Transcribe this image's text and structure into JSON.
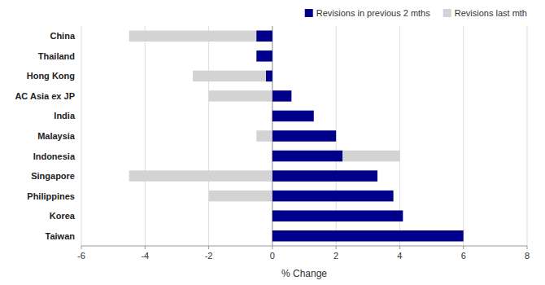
{
  "chart_data": {
    "type": "bar",
    "orientation": "horizontal",
    "categories": [
      "China",
      "Thailand",
      "Hong Kong",
      "AC Asia ex JP",
      "India",
      "Malaysia",
      "Indonesia",
      "Singapore",
      "Philippines",
      "Korea",
      "Taiwan"
    ],
    "series": [
      {
        "name": "Revisions in previous 2 mths",
        "color": "#00008B",
        "values": [
          -0.5,
          -0.5,
          -0.2,
          0.6,
          1.3,
          2.0,
          2.2,
          3.3,
          3.8,
          4.1,
          6.0
        ]
      },
      {
        "name": "Revisions last mth",
        "color": "#D3D3D3",
        "values": [
          -4.5,
          0.0,
          -2.5,
          -2.0,
          0.0,
          -0.5,
          4.0,
          -4.5,
          -2.0,
          0.3,
          0.0
        ]
      }
    ],
    "xlabel": "% Change",
    "xlim": [
      -6,
      8
    ],
    "xticks": [
      -6,
      -4,
      -2,
      0,
      2,
      4,
      6,
      8
    ],
    "grid": true,
    "legend": "upper right"
  }
}
